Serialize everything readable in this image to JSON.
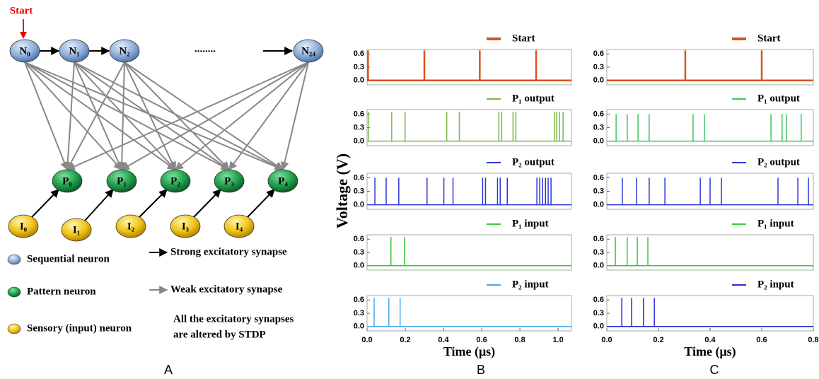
{
  "figure": {
    "ylabel": "Voltage (V)",
    "panel_labels": [
      "A",
      "B",
      "C"
    ]
  },
  "diagram": {
    "start": "Start",
    "sequential_nodes": [
      "N₀",
      "N₁",
      "N₂",
      "N₂₄"
    ],
    "ellipsis": "........",
    "pattern_nodes": [
      "P₀",
      "P₁",
      "P₂",
      "P₃",
      "P₄"
    ],
    "sensory_nodes": [
      "I₀",
      "I₁",
      "I₂",
      "I₃",
      "I₄"
    ],
    "legend": {
      "sequential": "Sequential neuron",
      "pattern": "Pattern neuron",
      "sensory": "Sensory (input) neuron",
      "strong": "Strong excitatory synapse",
      "weak": "Weak excitatory synapse",
      "note": [
        "All the excitatory synapses",
        "are altered by STDP"
      ]
    }
  },
  "chart_data": [
    {
      "type": "spike",
      "xlim": [
        0,
        1.07
      ],
      "ylim": [
        -0.1,
        0.7
      ],
      "yticks": [
        {
          "value": 0,
          "label": "0.0"
        },
        {
          "value": 0.3,
          "label": "0.3"
        },
        {
          "value": 0.6,
          "label": "0.6"
        }
      ],
      "series": [
        {
          "name": "Start",
          "color": "#d9541e",
          "x": [
            0.005,
            0.3,
            0.59,
            0.885
          ],
          "values": [
            0.68,
            0.68,
            0.68,
            0.68
          ]
        }
      ]
    },
    {
      "type": "spike",
      "xlim": [
        0,
        1.07
      ],
      "ylim": [
        -0.1,
        0.7
      ],
      "yticks": [
        {
          "value": 0,
          "label": "0.0"
        },
        {
          "value": 0.3,
          "label": "0.3"
        },
        {
          "value": 0.6,
          "label": "0.6"
        }
      ],
      "series": [
        {
          "name": "P₁ output",
          "color": "#7ab648",
          "x": [
            0.007,
            0.129,
            0.199,
            0.417,
            0.483,
            0.69,
            0.705,
            0.764,
            0.779,
            0.982,
            0.993,
            1.007,
            1.026
          ],
          "values": [
            0.65,
            0.65,
            0.65,
            0.65,
            0.65,
            0.65,
            0.65,
            0.65,
            0.65,
            0.65,
            0.65,
            0.65,
            0.65
          ]
        }
      ]
    },
    {
      "type": "spike",
      "xlim": [
        0,
        1.07
      ],
      "ylim": [
        -0.1,
        0.7
      ],
      "yticks": [
        {
          "value": 0,
          "label": "0.0"
        },
        {
          "value": 0.3,
          "label": "0.3"
        },
        {
          "value": 0.6,
          "label": "0.6"
        }
      ],
      "series": [
        {
          "name": "P₂ output",
          "color": "#2a36d8",
          "x": [
            0.041,
            0.1,
            0.166,
            0.314,
            0.402,
            0.45,
            0.605,
            0.62,
            0.683,
            0.697,
            0.734,
            0.889,
            0.904,
            0.919,
            0.934,
            0.948,
            0.963
          ],
          "values": [
            0.6,
            0.6,
            0.6,
            0.6,
            0.6,
            0.6,
            0.6,
            0.6,
            0.6,
            0.6,
            0.6,
            0.6,
            0.6,
            0.6,
            0.6,
            0.6,
            0.6
          ]
        }
      ]
    },
    {
      "type": "spike",
      "xlim": [
        0,
        1.07
      ],
      "ylim": [
        -0.1,
        0.7
      ],
      "yticks": [
        {
          "value": 0,
          "label": "0.0"
        },
        {
          "value": 0.3,
          "label": "0.3"
        },
        {
          "value": 0.6,
          "label": "0.6"
        }
      ],
      "series": [
        {
          "name": "P₁ input",
          "color": "#35c935",
          "x": [
            0.125,
            0.196
          ],
          "values": [
            0.65,
            0.65
          ]
        }
      ]
    },
    {
      "type": "spike",
      "xlim": [
        0,
        1.07
      ],
      "ylim": [
        -0.1,
        0.7
      ],
      "yticks": [
        {
          "value": 0,
          "label": "0.0"
        },
        {
          "value": 0.3,
          "label": "0.3"
        },
        {
          "value": 0.6,
          "label": "0.6"
        }
      ],
      "xticks": [
        {
          "value": 0,
          "label": "0.0"
        },
        0.2,
        0.4,
        0.6,
        0.8,
        {
          "value": 1,
          "label": "1.0"
        }
      ],
      "xlabel": "Time (μs)",
      "series": [
        {
          "name": "P₂ input",
          "color": "#4aa8e8",
          "x": [
            0.037,
            0.114,
            0.173
          ],
          "values": [
            0.65,
            0.65,
            0.65
          ]
        }
      ]
    },
    {
      "type": "spike",
      "xlim": [
        0,
        0.8
      ],
      "ylim": [
        -0.1,
        0.7
      ],
      "yticks": [
        {
          "value": 0,
          "label": "0.0"
        },
        {
          "value": 0.3,
          "label": "0.3"
        },
        {
          "value": 0.6,
          "label": "0.6"
        }
      ],
      "series": [
        {
          "name": "Start",
          "color": "#d9541e",
          "x": [
            0.304,
            0.6
          ],
          "values": [
            0.68,
            0.68
          ]
        }
      ]
    },
    {
      "type": "spike",
      "xlim": [
        0,
        0.8
      ],
      "ylim": [
        -0.1,
        0.7
      ],
      "yticks": [
        {
          "value": 0,
          "label": "0.0"
        },
        {
          "value": 0.3,
          "label": "0.3"
        },
        {
          "value": 0.6,
          "label": "0.6"
        }
      ],
      "series": [
        {
          "name": "P₁ output",
          "color": "#3ec45c",
          "x": [
            0.036,
            0.079,
            0.121,
            0.164,
            0.334,
            0.378,
            0.636,
            0.679,
            0.696,
            0.753
          ],
          "values": [
            0.6,
            0.6,
            0.6,
            0.6,
            0.6,
            0.6,
            0.6,
            0.6,
            0.6,
            0.6
          ]
        }
      ]
    },
    {
      "type": "spike",
      "xlim": [
        0,
        0.8
      ],
      "ylim": [
        -0.1,
        0.7
      ],
      "yticks": [
        {
          "value": 0,
          "label": "0.0"
        },
        {
          "value": 0.3,
          "label": "0.3"
        },
        {
          "value": 0.6,
          "label": "0.6"
        }
      ],
      "series": [
        {
          "name": "P₂ output",
          "color": "#2a36d8",
          "x": [
            0.06,
            0.115,
            0.164,
            0.225,
            0.362,
            0.4,
            0.444,
            0.663,
            0.74,
            0.781
          ],
          "values": [
            0.6,
            0.6,
            0.6,
            0.6,
            0.6,
            0.6,
            0.6,
            0.6,
            0.6,
            0.6
          ]
        }
      ]
    },
    {
      "type": "spike",
      "xlim": [
        0,
        0.8
      ],
      "ylim": [
        -0.1,
        0.7
      ],
      "yticks": [
        {
          "value": 0,
          "label": "0.0"
        },
        {
          "value": 0.3,
          "label": "0.3"
        },
        {
          "value": 0.6,
          "label": "0.6"
        }
      ],
      "series": [
        {
          "name": "P₁ input",
          "color": "#35c935",
          "x": [
            0.033,
            0.079,
            0.118,
            0.159
          ],
          "values": [
            0.65,
            0.65,
            0.65,
            0.65
          ]
        }
      ]
    },
    {
      "type": "spike",
      "xlim": [
        0,
        0.8
      ],
      "ylim": [
        -0.1,
        0.7
      ],
      "yticks": [
        {
          "value": 0,
          "label": "0.0"
        },
        {
          "value": 0.3,
          "label": "0.3"
        },
        {
          "value": 0.6,
          "label": "0.6"
        }
      ],
      "xticks": [
        {
          "value": 0,
          "label": "0.0"
        },
        0.2,
        0.4,
        0.6,
        {
          "value": 0.8,
          "label": "0.8"
        }
      ],
      "xlabel": "Time (μs)",
      "series": [
        {
          "name": "P₂ input",
          "color": "#2b2bd8",
          "x": [
            0.058,
            0.096,
            0.142,
            0.184
          ],
          "values": [
            0.65,
            0.65,
            0.65,
            0.65
          ]
        }
      ]
    }
  ]
}
